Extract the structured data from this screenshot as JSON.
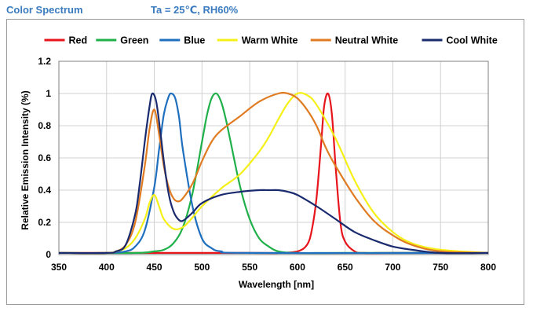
{
  "header": {
    "title": "Color Spectrum",
    "conditions": "Ta = 25℃, RH60%"
  },
  "chart_data": {
    "type": "line",
    "title": "",
    "xlabel": "Wavelength  [nm]",
    "ylabel": "Relative Emission Intensity (%)",
    "xlim": [
      350,
      800
    ],
    "ylim": [
      0,
      1.2
    ],
    "xticks": [
      350,
      400,
      450,
      500,
      550,
      600,
      650,
      700,
      750,
      800
    ],
    "yticks": [
      0,
      0.2,
      0.4,
      0.6,
      0.8,
      1,
      1.2
    ],
    "xtick_labels": [
      "350",
      "400",
      "450",
      "500",
      "550",
      "600",
      "650",
      "700",
      "750",
      "800"
    ],
    "ytick_labels": [
      "0",
      "0.2",
      "0.4",
      "0.6",
      "0.8",
      "1",
      "1.2"
    ],
    "grid": true,
    "legend_position": "top",
    "series": [
      {
        "name": "Red",
        "color": "#e8141c",
        "x": [
          350,
          550,
          580,
          600,
          610,
          615,
          620,
          625,
          628,
          632,
          636,
          640,
          645,
          650,
          660,
          670,
          700,
          800
        ],
        "y": [
          0.01,
          0.01,
          0.01,
          0.02,
          0.06,
          0.15,
          0.35,
          0.7,
          0.92,
          1.0,
          0.88,
          0.55,
          0.2,
          0.08,
          0.02,
          0.01,
          0.01,
          0.01
        ]
      },
      {
        "name": "Green",
        "color": "#1fb04a",
        "x": [
          350,
          430,
          450,
          460,
          470,
          480,
          490,
          500,
          505,
          510,
          515,
          520,
          525,
          530,
          540,
          550,
          560,
          570,
          580,
          600,
          650,
          800
        ],
        "y": [
          0.01,
          0.01,
          0.02,
          0.03,
          0.07,
          0.17,
          0.38,
          0.7,
          0.86,
          0.97,
          1.0,
          0.95,
          0.84,
          0.7,
          0.42,
          0.22,
          0.1,
          0.05,
          0.02,
          0.01,
          0.01,
          0.01
        ]
      },
      {
        "name": "Blue",
        "color": "#1f6fbf",
        "x": [
          350,
          400,
          420,
          430,
          440,
          450,
          455,
          460,
          465,
          468,
          472,
          476,
          480,
          490,
          500,
          510,
          520,
          550,
          800
        ],
        "y": [
          0.01,
          0.01,
          0.02,
          0.05,
          0.15,
          0.42,
          0.65,
          0.87,
          0.98,
          1.0,
          0.97,
          0.85,
          0.65,
          0.3,
          0.1,
          0.04,
          0.02,
          0.01,
          0.01
        ]
      },
      {
        "name": "Warm White",
        "color": "#f5f018",
        "x": [
          350,
          400,
          410,
          420,
          430,
          440,
          445,
          450,
          455,
          460,
          470,
          480,
          490,
          500,
          520,
          540,
          560,
          570,
          580,
          590,
          600,
          610,
          620,
          640,
          660,
          680,
          700,
          720,
          750,
          800
        ],
        "y": [
          0.01,
          0.01,
          0.02,
          0.04,
          0.1,
          0.22,
          0.32,
          0.37,
          0.3,
          0.22,
          0.16,
          0.17,
          0.23,
          0.3,
          0.41,
          0.5,
          0.64,
          0.73,
          0.84,
          0.94,
          1.0,
          0.99,
          0.93,
          0.72,
          0.46,
          0.26,
          0.14,
          0.07,
          0.03,
          0.01
        ]
      },
      {
        "name": "Neutral White",
        "color": "#e07b22",
        "x": [
          350,
          400,
          410,
          420,
          430,
          440,
          445,
          450,
          455,
          460,
          465,
          470,
          475,
          480,
          490,
          500,
          510,
          520,
          540,
          560,
          580,
          590,
          600,
          610,
          620,
          630,
          640,
          660,
          680,
          700,
          720,
          750,
          800
        ],
        "y": [
          0.01,
          0.01,
          0.02,
          0.06,
          0.2,
          0.55,
          0.78,
          0.9,
          0.75,
          0.55,
          0.42,
          0.35,
          0.33,
          0.35,
          0.44,
          0.58,
          0.7,
          0.77,
          0.86,
          0.95,
          1.0,
          1.0,
          0.97,
          0.9,
          0.8,
          0.66,
          0.55,
          0.36,
          0.21,
          0.12,
          0.06,
          0.02,
          0.01
        ]
      },
      {
        "name": "Cool White",
        "color": "#1a2a6e",
        "x": [
          350,
          400,
          410,
          420,
          430,
          435,
          440,
          445,
          448,
          452,
          456,
          460,
          465,
          470,
          475,
          480,
          490,
          500,
          520,
          540,
          560,
          570,
          580,
          590,
          600,
          620,
          640,
          660,
          680,
          700,
          720,
          750,
          800
        ],
        "y": [
          0.01,
          0.01,
          0.02,
          0.06,
          0.25,
          0.45,
          0.7,
          0.92,
          1.0,
          0.95,
          0.78,
          0.58,
          0.38,
          0.27,
          0.22,
          0.21,
          0.26,
          0.32,
          0.37,
          0.39,
          0.4,
          0.4,
          0.4,
          0.39,
          0.37,
          0.3,
          0.22,
          0.14,
          0.09,
          0.05,
          0.03,
          0.01,
          0.01
        ]
      }
    ]
  }
}
